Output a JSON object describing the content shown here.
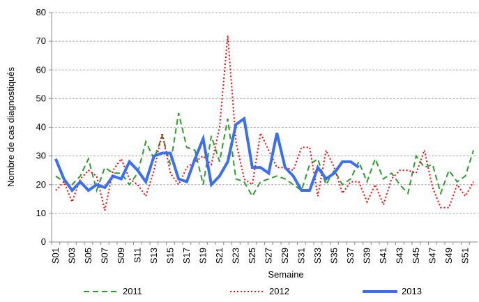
{
  "chart_data": {
    "type": "line",
    "x_label": "Semaine",
    "y_label": "Nombre de cas diagnostiqués",
    "categories": [
      "S01",
      null,
      "S03",
      null,
      "S05",
      null,
      "S07",
      null,
      "S09",
      null,
      "S11",
      null,
      "S13",
      null,
      "S15",
      null,
      "S17",
      null,
      "S19",
      null,
      "S21",
      null,
      "S23",
      null,
      "S25",
      null,
      "S27",
      null,
      "S29",
      null,
      "S31",
      null,
      "S33",
      null,
      "S35",
      null,
      "S37",
      null,
      "S39",
      null,
      "S41",
      null,
      "S43",
      null,
      "S45",
      null,
      "S47",
      null,
      "S49",
      null,
      "S51",
      null
    ],
    "ylim": [
      0,
      80
    ],
    "yticks": [
      0,
      10,
      20,
      30,
      40,
      50,
      60,
      70,
      80
    ],
    "grid": true,
    "series": [
      {
        "name": "2011",
        "color": "#2e9a2e",
        "dash": "dashed",
        "width": 2,
        "values": [
          23,
          21,
          20,
          23,
          29,
          18,
          26,
          24,
          24,
          20,
          24,
          35,
          29,
          37,
          27,
          45,
          33,
          32,
          20,
          37,
          28,
          43,
          22,
          21,
          16,
          21,
          22,
          23,
          22,
          20,
          18,
          27,
          29,
          20,
          25,
          20,
          22,
          28,
          21,
          29,
          22,
          24,
          20,
          17,
          30,
          26,
          27,
          17,
          25,
          21,
          23,
          32
        ]
      },
      {
        "name": "2012",
        "color": "#ff0000",
        "dash": "dotted",
        "width": 2,
        "values": [
          18,
          21,
          14,
          22,
          25,
          23,
          11,
          25,
          29,
          22,
          20,
          16,
          25,
          38,
          24,
          20,
          26,
          28,
          30,
          27,
          40,
          72,
          35,
          22,
          20,
          38,
          32,
          26,
          26,
          25,
          33,
          33,
          16,
          32,
          26,
          17,
          21,
          21,
          14,
          20,
          13,
          22,
          25,
          25,
          24,
          32,
          19,
          12,
          12,
          20,
          16,
          21
        ]
      },
      {
        "name": "2013",
        "color": "#3c6ef0",
        "dash": "solid",
        "width": 4,
        "values": [
          29,
          22,
          18,
          21,
          18,
          20,
          19,
          23,
          22,
          28,
          25,
          21,
          30,
          31,
          31,
          22,
          21,
          29,
          36,
          20,
          23,
          28,
          41,
          43,
          26,
          26,
          24,
          38,
          26,
          23,
          18,
          18,
          26,
          22,
          24,
          28,
          28,
          26,
          null,
          null,
          null,
          null,
          null,
          null,
          null,
          null,
          null,
          null,
          null,
          null,
          null,
          null
        ]
      }
    ]
  }
}
